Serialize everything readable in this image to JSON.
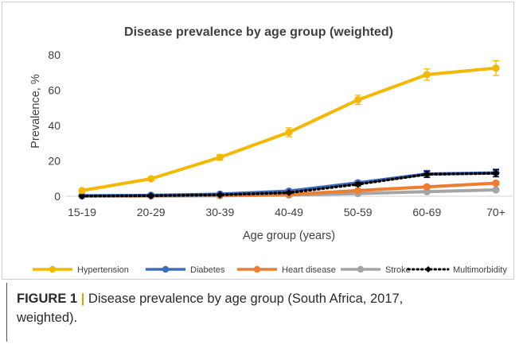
{
  "chart_data": {
    "type": "line",
    "title": "Disease prevalence by age group (weighted)",
    "xlabel": "Age group (years)",
    "ylabel": "Prevalence, %",
    "ylim": [
      0,
      80
    ],
    "yticks": [
      0,
      20,
      40,
      60,
      80
    ],
    "grid": false,
    "legend": "bottom",
    "categories": [
      "15-19",
      "20-29",
      "30-39",
      "40-49",
      "50-59",
      "60-69",
      "70+"
    ],
    "series": [
      {
        "name": "Hypertension",
        "color": "#f5b800",
        "marker": "circle",
        "dotted": false,
        "values": [
          3.2,
          9.9,
          22,
          36.2,
          54.5,
          68.8,
          72.5
        ],
        "errors": [
          0.6,
          1.0,
          1.6,
          2.5,
          2.6,
          3.2,
          4.2
        ]
      },
      {
        "name": "Diabetes",
        "color": "#3d6dbf",
        "marker": "circle",
        "dotted": false,
        "values": [
          0.3,
          0.5,
          1.2,
          2.9,
          7.6,
          12.6,
          13.2
        ],
        "errors": [
          0.1,
          0.2,
          0.4,
          0.7,
          1.2,
          2.0,
          2.2
        ]
      },
      {
        "name": "Heart disease",
        "color": "#ed7d31",
        "marker": "circle",
        "dotted": false,
        "values": [
          0.2,
          0.3,
          0.5,
          1.0,
          3.2,
          5.3,
          7.4
        ],
        "errors": [
          0.1,
          0.1,
          0.2,
          0.3,
          0.6,
          0.9,
          1.1
        ]
      },
      {
        "name": "Stroke",
        "color": "#a5a5a5",
        "marker": "circle",
        "dotted": false,
        "values": [
          0.1,
          0.1,
          0.3,
          0.7,
          1.5,
          2.6,
          3.6
        ],
        "errors": [
          0.1,
          0.1,
          0.1,
          0.2,
          0.4,
          0.6,
          0.8
        ]
      },
      {
        "name": "Multimorbidity",
        "color": "#000000",
        "marker": "diamond",
        "dotted": true,
        "values": [
          0.1,
          0.3,
          0.8,
          2.0,
          6.8,
          12.4,
          13.0
        ],
        "errors": [
          0.1,
          0.1,
          0.3,
          0.5,
          1.0,
          1.8,
          2.0
        ]
      }
    ]
  },
  "caption": {
    "label": "FIGURE 1",
    "separator": "|",
    "text": "Disease prevalence by age group (South Africa, 2017, weighted)."
  }
}
